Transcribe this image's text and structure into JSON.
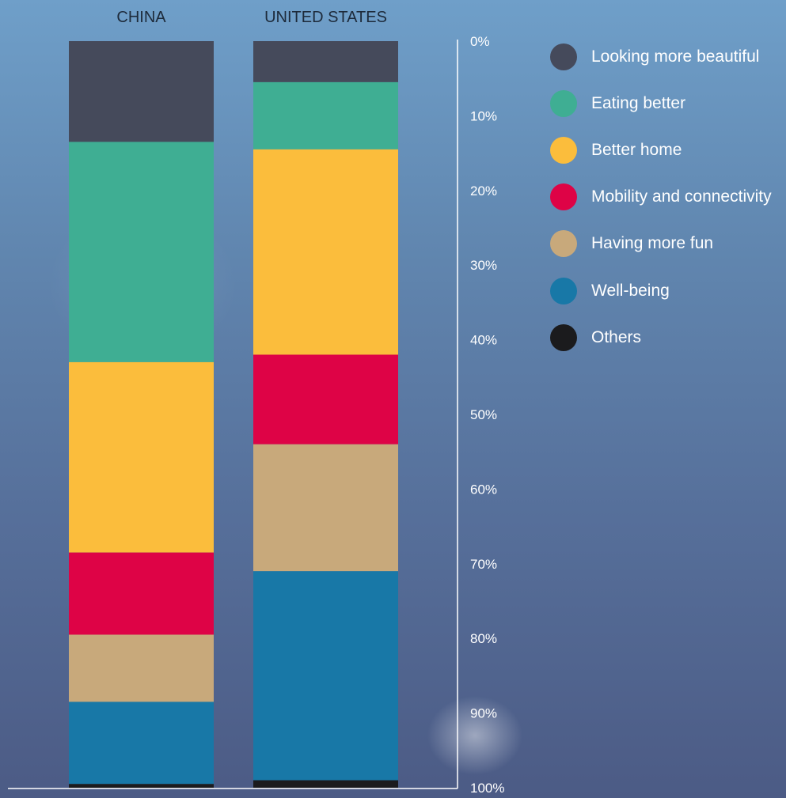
{
  "chart_data": {
    "type": "bar",
    "stacked": true,
    "orientation": "vertical",
    "categories": [
      "CHINA",
      "UNITED STATES"
    ],
    "series": [
      {
        "name": "Looking more beautiful",
        "color": "#454a5b",
        "values": [
          13.5,
          5.5
        ]
      },
      {
        "name": "Eating better",
        "color": "#3fae93",
        "values": [
          29.5,
          9.0
        ]
      },
      {
        "name": "Better home",
        "color": "#fbbd3c",
        "values": [
          25.5,
          27.5
        ]
      },
      {
        "name": "Mobility and connectivity",
        "color": "#de0346",
        "values": [
          11.0,
          12.0
        ]
      },
      {
        "name": "Having more fun",
        "color": "#c8a97b",
        "values": [
          9.0,
          17.0
        ]
      },
      {
        "name": "Well-being",
        "color": "#1878a7",
        "values": [
          11.0,
          28.0
        ]
      },
      {
        "name": "Others",
        "color": "#1b1b1d",
        "values": [
          0.5,
          1.0
        ]
      }
    ],
    "y_ticks": [
      "0%",
      "10%",
      "20%",
      "30%",
      "40%",
      "50%",
      "60%",
      "70%",
      "80%",
      "90%",
      "100%"
    ],
    "ylim": [
      0,
      100
    ],
    "y_axis_inverted": true,
    "y_axis_side": "right",
    "legend_position": "top-right",
    "grid": false,
    "title": "",
    "xlabel": "",
    "ylabel": ""
  }
}
